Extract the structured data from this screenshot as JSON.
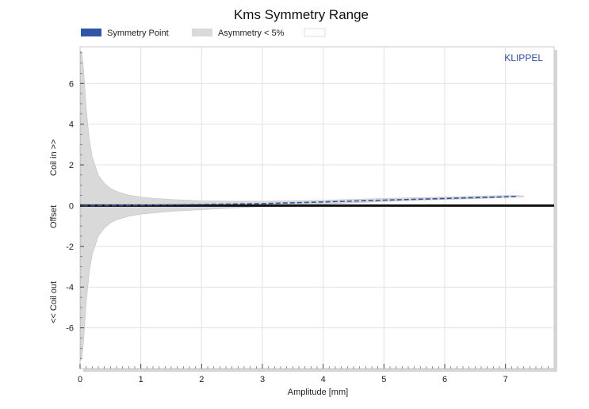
{
  "colors": {
    "symmetry_point": "#2f56a6",
    "asymmetry_band": "#d9d9d9",
    "zero_line": "#111111",
    "grid": "#e2e2e2",
    "frame": "#cccccc",
    "watermark": "#2f4f9e"
  },
  "watermark": "KLIPPEL",
  "chart_data": {
    "type": "area",
    "title": "Kms Symmetry Range",
    "xlabel": "Amplitude [mm]",
    "ylabel_parts": [
      "<< Coil out",
      "Offset",
      "Coil in >>"
    ],
    "xlim": [
      0,
      7.8
    ],
    "ylim": [
      -8,
      7.8
    ],
    "xticks": [
      0,
      1,
      2,
      3,
      4,
      5,
      6,
      7
    ],
    "yticks": [
      -6,
      -4,
      -2,
      0,
      2,
      4,
      6
    ],
    "grid": true,
    "legend_position": "top-left",
    "legend": [
      {
        "label": "Symmetry Point",
        "key": "symmetry_point"
      },
      {
        "label": "Asymmetry < 5%",
        "key": "asymmetry_band"
      },
      {
        "label": "",
        "key": "empty"
      }
    ],
    "series": [
      {
        "name": "Symmetry Point",
        "x": [
          0.05,
          1,
          2,
          3,
          4,
          5,
          6,
          7.2
        ],
        "y": [
          0,
          0.02,
          0.06,
          0.1,
          0.18,
          0.27,
          0.35,
          0.45
        ]
      },
      {
        "name": "Asymmetry < 5%",
        "x": [
          0.01,
          0.03,
          0.06,
          0.1,
          0.15,
          0.2,
          0.3,
          0.4,
          0.5,
          0.6,
          0.8,
          1.0,
          1.2,
          1.5,
          2.0,
          2.5,
          3.0,
          3.5,
          4.0,
          4.5,
          5.0,
          5.5,
          6.0,
          6.5,
          7.0,
          7.2,
          7.3
        ],
        "upper": [
          7.6,
          7.5,
          6.6,
          4.8,
          3.3,
          2.4,
          1.5,
          1.1,
          0.85,
          0.7,
          0.52,
          0.42,
          0.36,
          0.3,
          0.24,
          0.22,
          0.22,
          0.24,
          0.27,
          0.31,
          0.35,
          0.39,
          0.42,
          0.46,
          0.5,
          0.5,
          0.47
        ],
        "lower": [
          -7.6,
          -7.5,
          -6.6,
          -4.8,
          -3.3,
          -2.4,
          -1.5,
          -1.1,
          -0.85,
          -0.7,
          -0.52,
          -0.42,
          -0.36,
          -0.28,
          -0.2,
          -0.12,
          -0.05,
          0.0,
          0.08,
          0.14,
          0.2,
          0.26,
          0.3,
          0.34,
          0.4,
          0.42,
          0.44
        ]
      }
    ]
  }
}
